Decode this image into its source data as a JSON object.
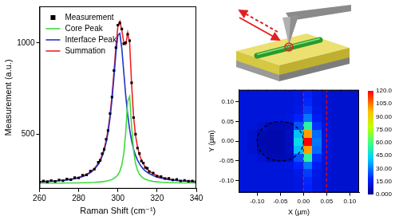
{
  "chart_data": [
    {
      "type": "line",
      "xlabel": "Raman Shift (cm⁻¹)",
      "ylabel": "Measurement (a.u.)",
      "x": [
        260,
        262,
        264,
        266,
        268,
        270,
        272,
        274,
        276,
        278,
        280,
        282,
        284,
        286,
        288,
        290,
        291,
        292,
        293,
        294,
        295,
        296,
        297,
        298,
        299,
        300,
        301,
        302,
        303,
        304,
        305,
        306,
        307,
        308,
        309,
        310,
        311,
        312,
        313,
        314,
        315,
        316,
        318,
        320,
        322,
        324,
        326,
        328,
        330,
        332,
        334,
        336,
        338,
        340
      ],
      "series": [
        {
          "name": "Measurement",
          "color": "#000000",
          "marker": "square",
          "line_style": "none",
          "values": [
            236,
            243,
            238,
            245,
            240,
            248,
            244,
            253,
            250,
            261,
            259,
            274,
            276,
            297,
            307,
            345,
            356,
            392,
            416,
            471,
            519,
            612,
            703,
            848,
            974,
            1097,
            1109,
            1076,
            995,
            1001,
            1047,
            1012,
            781,
            590,
            499,
            423,
            393,
            352,
            341,
            316,
            312,
            294,
            286,
            269,
            267,
            256,
            257,
            248,
            251,
            243,
            246,
            241,
            243,
            238
          ]
        },
        {
          "name": "Core Peak",
          "color": "#3cdc3c",
          "line_style": "solid",
          "values": [
            231,
            231,
            231,
            231,
            231,
            231,
            231,
            232,
            232,
            232,
            232,
            233,
            233,
            234,
            235,
            237,
            237,
            239,
            240,
            242,
            244,
            247,
            251,
            257,
            265,
            277,
            296,
            330,
            392,
            509,
            680,
            706,
            541,
            410,
            339,
            302,
            280,
            267,
            258,
            252,
            248,
            245,
            240,
            238,
            236,
            235,
            234,
            233,
            233,
            232,
            232,
            232,
            232,
            231
          ]
        },
        {
          "name": "Interface Peak",
          "color": "#2233cc",
          "line_style": "solid",
          "values": [
            238,
            239,
            240,
            241,
            242,
            244,
            246,
            248,
            251,
            255,
            260,
            267,
            276,
            288,
            306,
            333,
            353,
            378,
            410,
            453,
            510,
            588,
            689,
            813,
            946,
            1042,
            1052,
            969,
            840,
            712,
            606,
            524,
            463,
            418,
            383,
            357,
            337,
            321,
            308,
            298,
            290,
            283,
            272,
            264,
            258,
            254,
            250,
            247,
            245,
            243,
            242,
            241,
            239,
            239
          ]
        },
        {
          "name": "Summation",
          "color": "#ee2222",
          "line_style": "solid",
          "values": [
            239,
            240,
            241,
            242,
            243,
            245,
            247,
            250,
            253,
            257,
            262,
            270,
            279,
            292,
            311,
            340,
            360,
            387,
            420,
            465,
            524,
            605,
            710,
            840,
            981,
            1089,
            1118,
            1069,
            1002,
            991,
            1056,
            1000,
            774,
            598,
            492,
            429,
            387,
            358,
            336,
            320,
            308,
            298,
            282,
            272,
            264,
            259,
            254,
            250,
            248,
            245,
            244,
            243,
            241,
            240
          ]
        }
      ],
      "xlim": [
        260,
        340
      ],
      "xticks": [
        260,
        280,
        300,
        320,
        340
      ],
      "ylim": [
        200,
        1200
      ],
      "yticks": [
        500,
        1000
      ],
      "grid": false,
      "legend": "upper left"
    },
    {
      "type": "heatmap",
      "xlabel": "X (µm)",
      "ylabel": "Y (µm)",
      "x": [
        -0.13,
        -0.11,
        -0.09,
        -0.07,
        -0.05,
        -0.03,
        -0.01,
        0.01,
        0.03,
        0.05,
        0.07,
        0.09,
        0.11
      ],
      "y": [
        -0.12,
        -0.1,
        -0.08,
        -0.06,
        -0.04,
        -0.02,
        0.0,
        0.02,
        0.04,
        0.06,
        0.08,
        0.1,
        0.12
      ],
      "values": [
        [
          12,
          12,
          12,
          12,
          12,
          12,
          13,
          18,
          13,
          11,
          10,
          10,
          10
        ],
        [
          12,
          12,
          12,
          12,
          12,
          12,
          13,
          19,
          13,
          11,
          10,
          10,
          10
        ],
        [
          12,
          12,
          12,
          12,
          12,
          12,
          14,
          22,
          14,
          11,
          10,
          10,
          10
        ],
        [
          12,
          12,
          12,
          12,
          12,
          13,
          18,
          30,
          16,
          11,
          10,
          10,
          10
        ],
        [
          12,
          12,
          10,
          6,
          6,
          7,
          25,
          55,
          20,
          12,
          10,
          10,
          10
        ],
        [
          12,
          10,
          6,
          5,
          5,
          8,
          40,
          100,
          28,
          12,
          10,
          10,
          10
        ],
        [
          12,
          10,
          5,
          5,
          5,
          8,
          45,
          120,
          30,
          13,
          10,
          10,
          10
        ],
        [
          12,
          10,
          6,
          5,
          5,
          8,
          40,
          100,
          28,
          12,
          10,
          10,
          10
        ],
        [
          12,
          12,
          10,
          6,
          6,
          7,
          25,
          55,
          20,
          12,
          10,
          10,
          10
        ],
        [
          12,
          12,
          12,
          12,
          12,
          13,
          18,
          30,
          16,
          11,
          10,
          10,
          10
        ],
        [
          12,
          12,
          12,
          12,
          12,
          12,
          14,
          22,
          14,
          11,
          10,
          10,
          10
        ],
        [
          12,
          12,
          12,
          12,
          12,
          12,
          13,
          19,
          13,
          11,
          10,
          10,
          10
        ],
        [
          12,
          12,
          12,
          12,
          12,
          12,
          13,
          18,
          13,
          11,
          10,
          10,
          10
        ]
      ],
      "xlim": [
        -0.14,
        0.12
      ],
      "xticks": [
        {
          "value": -0.1,
          "label": "-0.10"
        },
        {
          "value": -0.05,
          "label": "-0.05"
        },
        {
          "value": 0,
          "label": "0.00"
        },
        {
          "value": 0.05,
          "label": "0.05"
        },
        {
          "value": 0.1,
          "label": "0.10"
        }
      ],
      "ylim": [
        -0.13,
        0.13
      ],
      "yticks": [
        {
          "value": -0.1,
          "label": "-0.10"
        },
        {
          "value": -0.05,
          "label": "-0.05"
        },
        {
          "value": 0,
          "label": "0.00"
        },
        {
          "value": 0.05,
          "label": "0.05"
        },
        {
          "value": 0.1,
          "label": "0.10"
        }
      ],
      "colorbar": {
        "range": [
          0,
          120
        ],
        "ticks": [
          {
            "value": 0,
            "label": "0.000"
          },
          {
            "value": 15,
            "label": "15.00"
          },
          {
            "value": 30,
            "label": "30.00"
          },
          {
            "value": 45,
            "label": "45.00"
          },
          {
            "value": 60,
            "label": "60.00"
          },
          {
            "value": 75,
            "label": "75.00"
          },
          {
            "value": 90,
            "label": "90.00"
          },
          {
            "value": 105,
            "label": "105.0"
          },
          {
            "value": 120,
            "label": "120.0"
          }
        ]
      },
      "outlines": [
        {
          "shape": "circle",
          "x": -0.05,
          "y": 0,
          "r": 0.05,
          "color": "#000000",
          "line_style": "dashed"
        },
        {
          "shape": "rectangle",
          "x": [
            0,
            0.05
          ],
          "y": [
            -0.13,
            0.13
          ],
          "color": "#ff0000",
          "line_style": "dashed"
        }
      ],
      "grid": false
    }
  ]
}
